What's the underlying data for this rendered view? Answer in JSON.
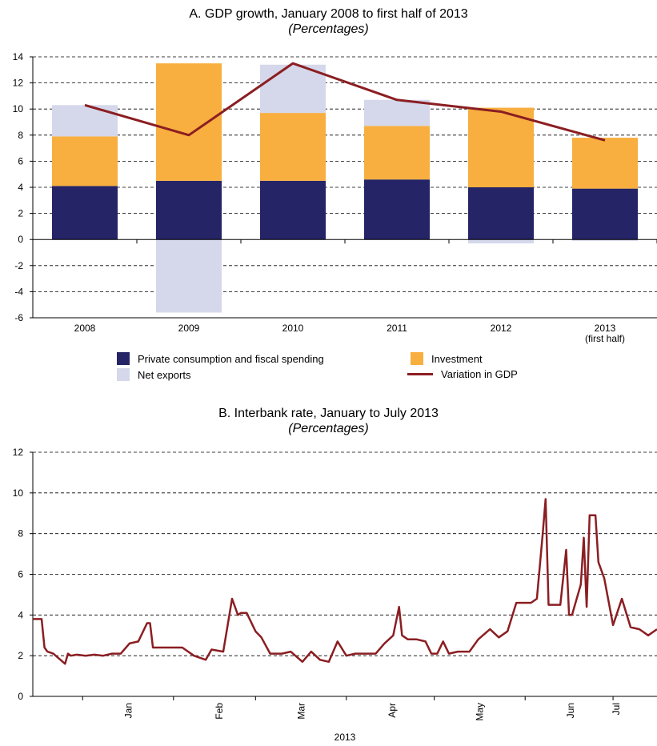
{
  "chart_data": [
    {
      "type": "bar",
      "title": "A. GDP growth, January 2008 to first half of 2013",
      "subtitle": "(Percentages)",
      "categories": [
        "2008",
        "2009",
        "2010",
        "2011",
        "2012",
        "2013\n(first half)"
      ],
      "category_labels": [
        {
          "line1": "2008",
          "line2": ""
        },
        {
          "line1": "2009",
          "line2": ""
        },
        {
          "line1": "2010",
          "line2": ""
        },
        {
          "line1": "2011",
          "line2": ""
        },
        {
          "line1": "2012",
          "line2": ""
        },
        {
          "line1": "2013",
          "line2": "(first half)"
        }
      ],
      "stacked": true,
      "series": [
        {
          "name": "Private consumption and fiscal spending",
          "kind": "bar",
          "color": "#252466",
          "values": [
            4.1,
            4.5,
            4.5,
            4.6,
            4.0,
            3.9
          ]
        },
        {
          "name": "Investment",
          "kind": "bar",
          "color": "#F8AF3F",
          "values": [
            3.8,
            9.0,
            5.2,
            4.1,
            6.1,
            3.9
          ]
        },
        {
          "name": "Net exports",
          "kind": "bar",
          "color": "#D5D8EB",
          "values": [
            2.4,
            -5.6,
            3.7,
            2.0,
            -0.3,
            -0.1
          ]
        },
        {
          "name": "Variation in GDP",
          "kind": "line",
          "color": "#8B1E22",
          "values": [
            10.3,
            8.0,
            13.5,
            10.7,
            9.8,
            7.6
          ]
        }
      ],
      "ylim": [
        -6,
        14
      ],
      "yticks": [
        14,
        12,
        10,
        8,
        6,
        4,
        2,
        0,
        -2,
        -4,
        -6
      ],
      "grid": true,
      "legend_position": "bottom"
    },
    {
      "type": "line",
      "title": "B. Interbank rate, January to July 2013",
      "subtitle": "(Percentages)",
      "xlabel": "2013",
      "ylim": [
        0,
        12
      ],
      "yticks": [
        12,
        10,
        8,
        6,
        4,
        2,
        0
      ],
      "month_labels": [
        "Jan",
        "Feb",
        "Mar",
        "Apr",
        "May",
        "Jun",
        "Jul"
      ],
      "x_range": [
        "2012-12-15",
        "2013-07-16"
      ],
      "grid": true,
      "series": [
        {
          "name": "",
          "color": "#8B1E22",
          "x": [
            "2012-12-15",
            "2012-12-18",
            "2012-12-19",
            "2012-12-20",
            "2012-12-22",
            "2012-12-26",
            "2012-12-27",
            "2012-12-28",
            "2012-12-30",
            "2013-01-02",
            "2013-01-05",
            "2013-01-08",
            "2013-01-11",
            "2013-01-14",
            "2013-01-17",
            "2013-01-20",
            "2013-01-23",
            "2013-01-24",
            "2013-01-25",
            "2013-01-27",
            "2013-01-31",
            "2013-02-04",
            "2013-02-08",
            "2013-02-12",
            "2013-02-14",
            "2013-02-18",
            "2013-02-21",
            "2013-02-23",
            "2013-02-24",
            "2013-02-26",
            "2013-03-01",
            "2013-03-03",
            "2013-03-06",
            "2013-03-10",
            "2013-03-13",
            "2013-03-17",
            "2013-03-20",
            "2013-03-23",
            "2013-03-26",
            "2013-03-29",
            "2013-04-01",
            "2013-04-04",
            "2013-04-08",
            "2013-04-11",
            "2013-04-14",
            "2013-04-17",
            "2013-04-19",
            "2013-04-20",
            "2013-04-22",
            "2013-04-25",
            "2013-04-28",
            "2013-04-30",
            "2013-05-02",
            "2013-05-04",
            "2013-05-06",
            "2013-05-09",
            "2013-05-13",
            "2013-05-16",
            "2013-05-20",
            "2013-05-23",
            "2013-05-26",
            "2013-05-29",
            "2013-05-31",
            "2013-06-01",
            "2013-06-03",
            "2013-06-05",
            "2013-06-07",
            "2013-06-08",
            "2013-06-09",
            "2013-06-11",
            "2013-06-13",
            "2013-06-15",
            "2013-06-16",
            "2013-06-17",
            "2013-06-20",
            "2013-06-21",
            "2013-06-22",
            "2013-06-23",
            "2013-06-25",
            "2013-06-26",
            "2013-06-28",
            "2013-07-01",
            "2013-07-04",
            "2013-07-07",
            "2013-07-10",
            "2013-07-13",
            "2013-07-16"
          ],
          "values": [
            3.8,
            3.8,
            2.4,
            2.2,
            2.1,
            1.6,
            2.1,
            2.0,
            2.05,
            2.0,
            2.05,
            2.0,
            2.1,
            2.1,
            2.6,
            2.7,
            3.6,
            3.6,
            2.4,
            2.4,
            2.4,
            2.4,
            2.0,
            1.8,
            2.3,
            2.2,
            4.8,
            4.0,
            4.1,
            4.1,
            3.2,
            2.9,
            2.1,
            2.1,
            2.2,
            1.7,
            2.2,
            1.8,
            1.7,
            2.7,
            2.0,
            2.1,
            2.1,
            2.1,
            2.6,
            3.0,
            4.4,
            3.0,
            2.8,
            2.8,
            2.7,
            2.1,
            2.1,
            2.7,
            2.1,
            2.2,
            2.2,
            2.8,
            3.3,
            2.9,
            3.2,
            4.6,
            4.6,
            4.6,
            4.6,
            4.8,
            8.0,
            9.7,
            4.5,
            4.5,
            4.5,
            7.2,
            4.0,
            4.0,
            5.5,
            7.8,
            4.4,
            8.9,
            8.9,
            6.6,
            5.8,
            3.5,
            4.8,
            3.4,
            3.3,
            3.0,
            3.3
          ]
        }
      ]
    }
  ],
  "legend": [
    {
      "label": "Private consumption and fiscal spending",
      "kind": "box",
      "color": "#252466"
    },
    {
      "label": "Investment",
      "kind": "box",
      "color": "#F8AF3F"
    },
    {
      "label": "Net exports",
      "kind": "box",
      "color": "#D5D8EB"
    },
    {
      "label": "Variation in GDP",
      "kind": "line",
      "color": "#8B1E22"
    }
  ]
}
